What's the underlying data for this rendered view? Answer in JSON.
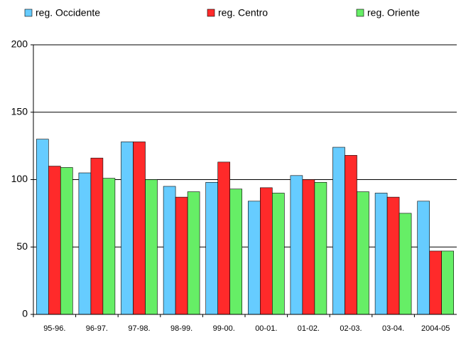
{
  "chart_data": {
    "type": "bar",
    "categories": [
      "95-96.",
      "96-97.",
      "97-98.",
      "98-99.",
      "99-00.",
      "00-01.",
      "01-02.",
      "02-03.",
      "03-04.",
      "2004-05"
    ],
    "series": [
      {
        "name": "reg. Occidente",
        "color": "#66ccff",
        "values": [
          130,
          105,
          128,
          95,
          98,
          84,
          103,
          124,
          90,
          84
        ]
      },
      {
        "name": "reg. Centro",
        "color": "#ff2a2a",
        "values": [
          110,
          116,
          128,
          87,
          113,
          94,
          100,
          118,
          87,
          47
        ]
      },
      {
        "name": "reg. Oriente",
        "color": "#66ee66",
        "values": [
          109,
          101,
          100,
          91,
          93,
          90,
          98,
          91,
          75,
          47
        ]
      }
    ],
    "ylim": [
      0,
      200
    ],
    "yticks": [
      0,
      50,
      100,
      150,
      200
    ],
    "grid": true
  }
}
